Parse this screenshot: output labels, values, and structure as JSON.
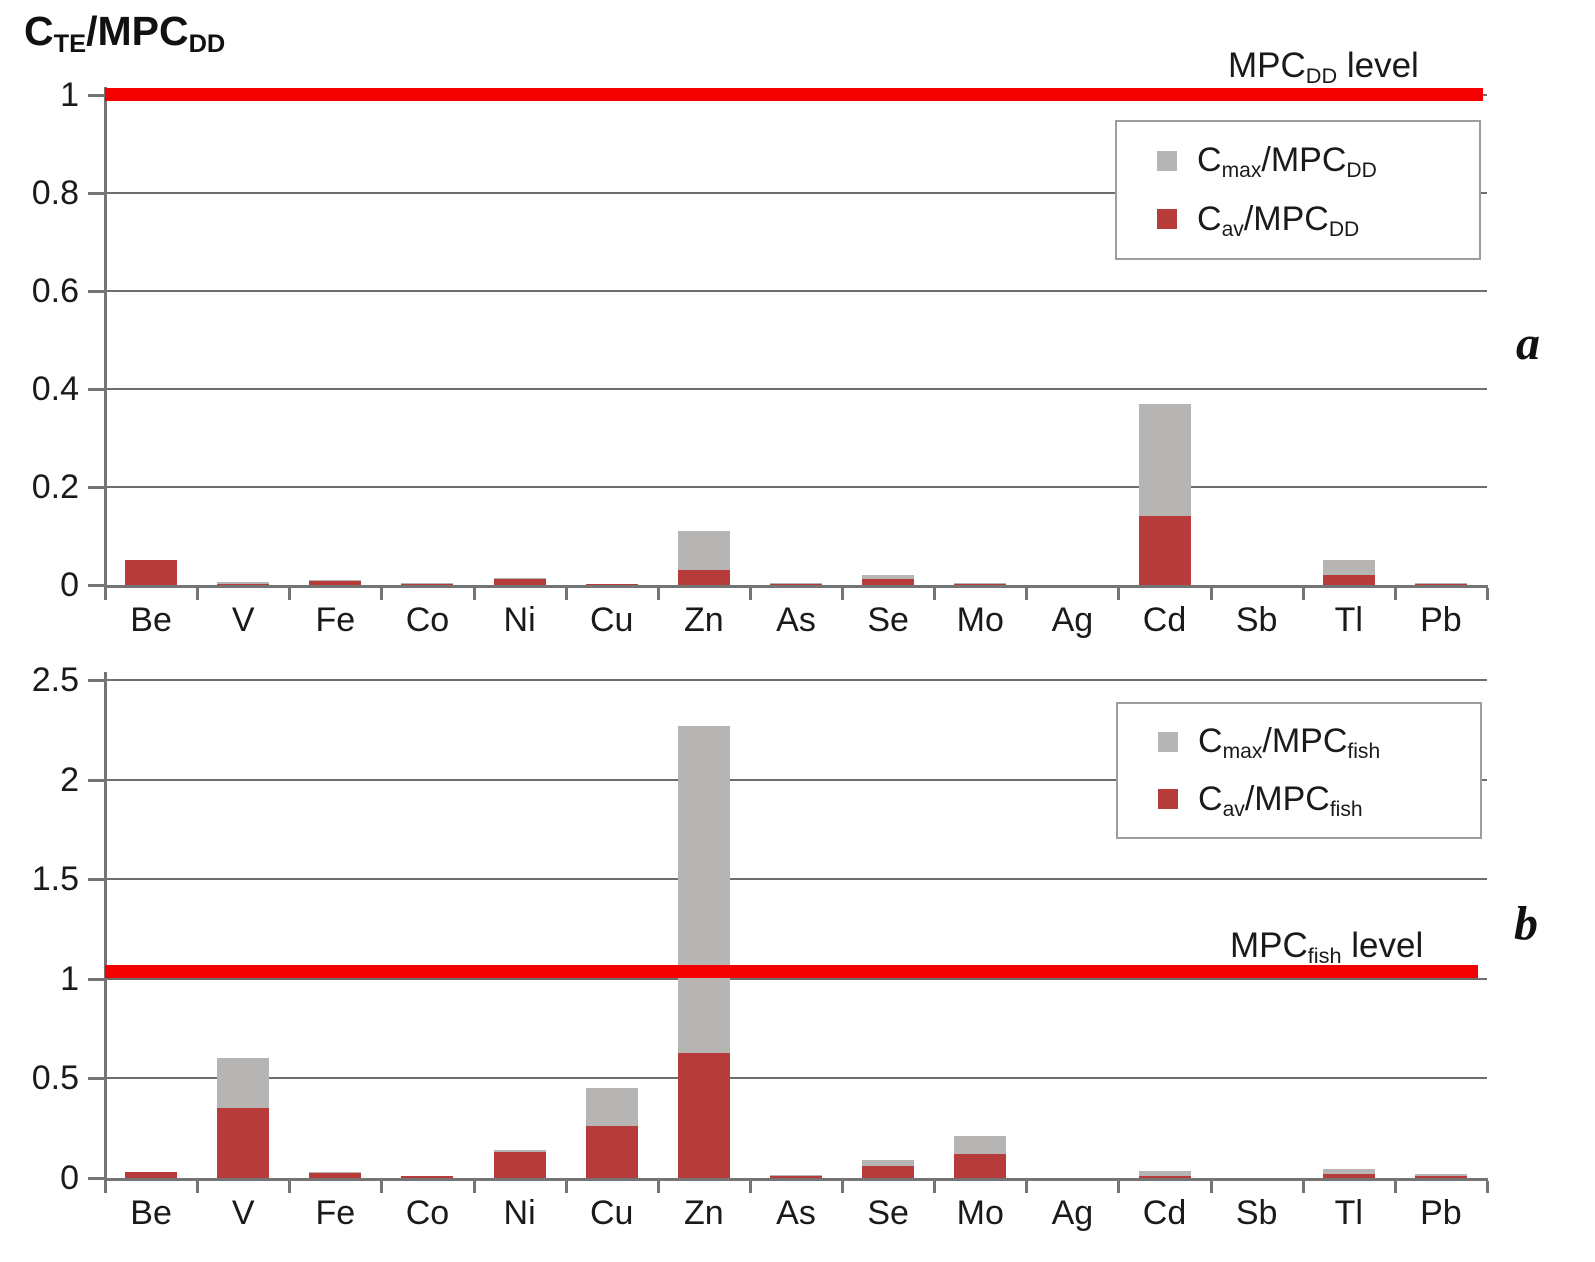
{
  "title": {
    "c": "C",
    "sub1": "TE",
    "rest": "/MPC",
    "sub2": "DD"
  },
  "colors": {
    "bar_av": "#b63b3a",
    "bar_max": "#b6b5b4",
    "mpc_line": "#f40000",
    "axis": "#757474",
    "grid": "#6f6e6e"
  },
  "chart_data": [
    {
      "type": "stacked-bar",
      "panel": "a",
      "categories": [
        "Be",
        "V",
        "Fe",
        "Co",
        "Ni",
        "Cu",
        "Zn",
        "As",
        "Se",
        "Mo",
        "Ag",
        "Cd",
        "Sb",
        "Tl",
        "Pb"
      ],
      "series": [
        {
          "name": "Cmax/MPCDD",
          "role": "max",
          "color_key": "bar_max",
          "values": [
            0.05,
            0.006,
            0.01,
            0.003,
            0.015,
            0.002,
            0.11,
            0.004,
            0.02,
            0.003,
            0,
            0.37,
            0,
            0.05,
            0.004
          ]
        },
        {
          "name": "Cav/MPCDD",
          "role": "av",
          "color_key": "bar_av",
          "values": [
            0.05,
            0.003,
            0.008,
            0.002,
            0.013,
            0.002,
            0.03,
            0.002,
            0.012,
            0.002,
            0,
            0.14,
            0,
            0.02,
            0.002
          ]
        }
      ],
      "ylim": [
        0,
        1
      ],
      "yticks": [
        "0",
        "0.2",
        "0.4",
        "0.6",
        "0.8",
        "1"
      ],
      "grid": true,
      "legend_position": "top-right",
      "mpc_line": {
        "value": 1.0,
        "label": {
          "pre": "MPC",
          "sub": "DD",
          "post": " level"
        }
      },
      "legend": [
        {
          "color_key": "bar_max",
          "c": "C",
          "sub": "max",
          "rest": "/MPC",
          "sub2": "DD"
        },
        {
          "color_key": "bar_av",
          "c": "C",
          "sub": "av",
          "rest": "/MPC",
          "sub2": "DD"
        }
      ]
    },
    {
      "type": "stacked-bar",
      "panel": "b",
      "categories": [
        "Be",
        "V",
        "Fe",
        "Co",
        "Ni",
        "Cu",
        "Zn",
        "As",
        "Se",
        "Mo",
        "Ag",
        "Cd",
        "Sb",
        "Tl",
        "Pb"
      ],
      "series": [
        {
          "name": "Cmax/MPCfish",
          "role": "max",
          "color_key": "bar_max",
          "values": [
            0.03,
            0.6,
            0.03,
            0.01,
            0.14,
            0.45,
            2.27,
            0.015,
            0.09,
            0.21,
            0,
            0.035,
            0,
            0.045,
            0.02
          ]
        },
        {
          "name": "Cav/MPCfish",
          "role": "av",
          "color_key": "bar_av",
          "values": [
            0.03,
            0.35,
            0.025,
            0.01,
            0.13,
            0.26,
            0.63,
            0.01,
            0.06,
            0.12,
            0,
            0.01,
            0,
            0.02,
            0.01
          ]
        }
      ],
      "ylim": [
        0,
        2.5
      ],
      "yticks": [
        "0",
        "0.5",
        "1",
        "1.5",
        "2",
        "2.5"
      ],
      "grid": true,
      "legend_position": "top-right",
      "mpc_line": {
        "value": 1.0,
        "label": {
          "pre": "MPC",
          "sub": "fish",
          "post": " level"
        }
      },
      "legend": [
        {
          "color_key": "bar_max",
          "c": "C",
          "sub": "max",
          "rest": "/MPC",
          "sub2": "fish"
        },
        {
          "color_key": "bar_av",
          "c": "C",
          "sub": "av",
          "rest": "/MPC",
          "sub2": "fish"
        }
      ]
    }
  ]
}
